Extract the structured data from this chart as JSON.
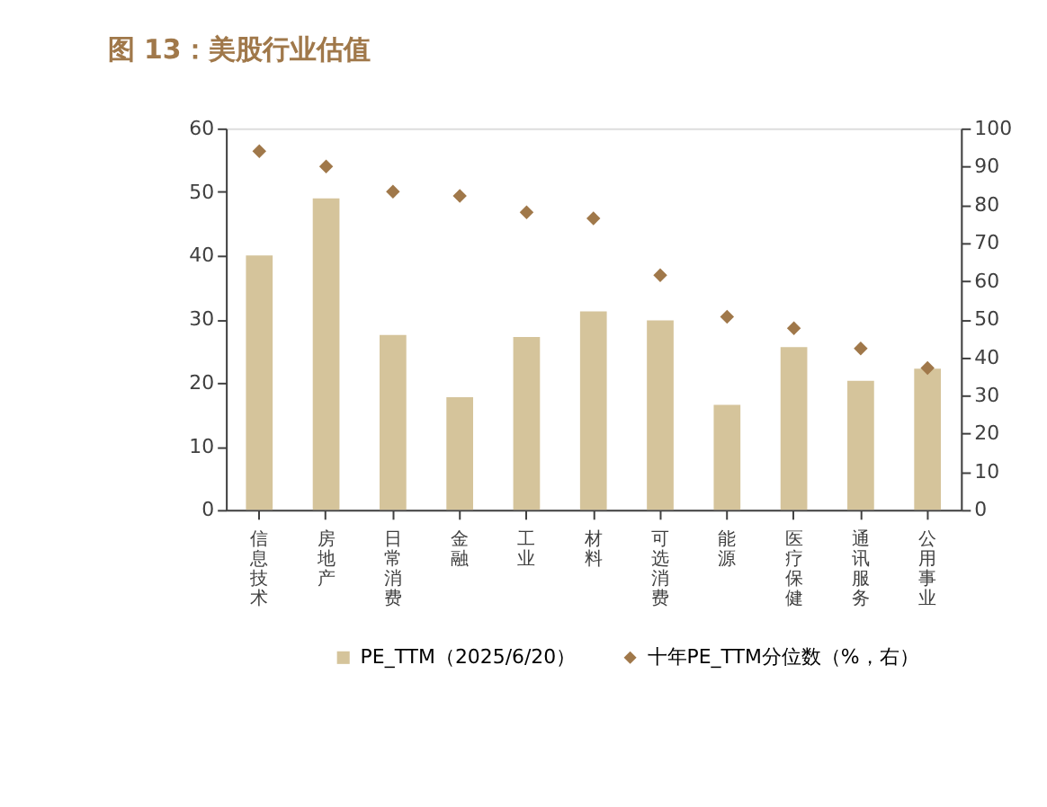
{
  "chart_data": {
    "type": "bar",
    "title": "图 13：美股行业估值",
    "categories": [
      "信息技术",
      "房地产",
      "日常消费",
      "金融",
      "工业",
      "材料",
      "可选消费",
      "能源",
      "医疗保健",
      "通讯服务",
      "公用事业"
    ],
    "series": [
      {
        "name": "PE_TTM（2025/6/20）",
        "color": "#d5c49b",
        "values": [
          40,
          49,
          27.5,
          17.7,
          27.2,
          31.2,
          29.8,
          16.5,
          25.6,
          20.3,
          22.2
        ]
      },
      {
        "name": "十年PE_TTM分位数（%，右）",
        "color": "#a0784a",
        "type": "scatter",
        "axis": "y2",
        "marker": "diamond",
        "values": [
          94,
          90,
          83.4,
          82.3,
          78,
          76.4,
          61.5,
          50.6,
          47.6,
          42.3,
          37.2
        ]
      }
    ],
    "ylim": [
      0,
      60
    ],
    "yticks": [
      0,
      10,
      20,
      30,
      40,
      50,
      60
    ],
    "y2lim": [
      0,
      100
    ],
    "y2ticks": [
      0,
      10,
      20,
      30,
      40,
      50,
      60,
      70,
      80,
      90,
      100
    ],
    "grid": false,
    "legend": "bottom"
  }
}
